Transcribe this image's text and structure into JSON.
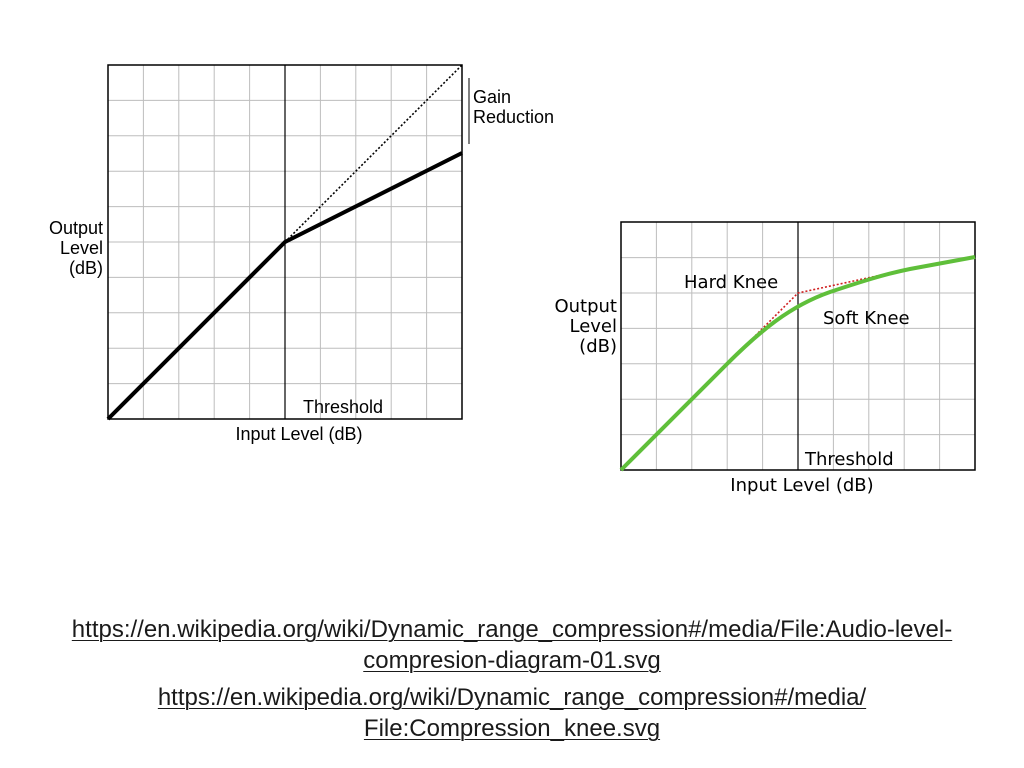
{
  "diagram_left": {
    "ylabel_lines": [
      "Output",
      "Level",
      "(dB)"
    ],
    "xlabel": "Input Level (dB)",
    "threshold_label": "Threshold",
    "annotation_lines": [
      "Gain",
      "Reduction"
    ]
  },
  "diagram_right": {
    "ylabel_lines": [
      "Output",
      "Level",
      "(dB)"
    ],
    "xlabel": "Input Level (dB)",
    "threshold_label": "Threshold",
    "hard_knee_label": "Hard Knee",
    "soft_knee_label": "Soft Knee"
  },
  "colors": {
    "hard_knee": "#d02020",
    "soft_knee": "#5fbf3a",
    "grid": "#bdbdbd"
  },
  "links": [
    {
      "lines": [
        "https://en.wikipedia.org/wiki/Dynamic_range_compression#/media/File:Audio-level-",
        "compresion-diagram-01.svg"
      ]
    },
    {
      "lines": [
        "https://en.wikipedia.org/wiki/Dynamic_range_compression#/media/",
        "File:Compression_knee.svg"
      ]
    }
  ]
}
